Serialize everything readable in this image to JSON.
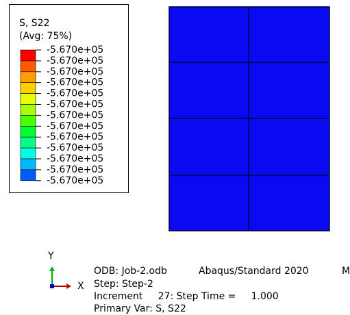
{
  "legend": {
    "title": "S, S22",
    "subtitle": "(Avg: 75%)",
    "colors": [
      "#ff0000",
      "#ff5a00",
      "#ff9e00",
      "#ffcf00",
      "#e8ff00",
      "#a6ff00",
      "#4cff00",
      "#00ff30",
      "#00ff8c",
      "#00ffe6",
      "#00b8ff",
      "#005cff",
      "#0000ff"
    ],
    "labels": [
      "-5.670e+05",
      "-5.670e+05",
      "-5.670e+05",
      "-5.670e+05",
      "-5.670e+05",
      "-5.670e+05",
      "-5.670e+05",
      "-5.670e+05",
      "-5.670e+05",
      "-5.670e+05",
      "-5.670e+05",
      "-5.670e+05",
      "-5.670e+05"
    ]
  },
  "triad": {
    "y": "Y",
    "x": "X"
  },
  "info": {
    "odb": "ODB: Job-2.odb",
    "version": "Abaqus/Standard 2020",
    "date": "M",
    "step": "Step: Step-2",
    "increment": "Increment     27: Step Time =     1.000",
    "primary_var": "Primary Var: S, S22"
  }
}
